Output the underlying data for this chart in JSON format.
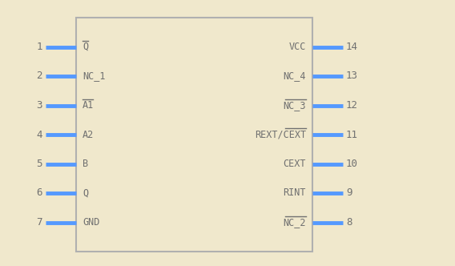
{
  "bg_color": "#f0e8cc",
  "box_color": "#b0b0b0",
  "box_fill": "#f0e8cc",
  "pin_color": "#5599ff",
  "text_color": "#707070",
  "left_pin_labels": [
    "Q",
    "NC_1",
    "A1",
    "A2",
    "B",
    "Q",
    "GND"
  ],
  "left_overbars": [
    true,
    false,
    true,
    false,
    false,
    false,
    false
  ],
  "left_pin_nums": [
    1,
    2,
    3,
    4,
    5,
    6,
    7
  ],
  "right_pin_labels": [
    "VCC",
    "NC_4",
    "NC_3",
    "REXT/CEXT",
    "CEXT",
    "RINT",
    "NC_2"
  ],
  "right_overbars": [
    false,
    false,
    true,
    true,
    false,
    false,
    true
  ],
  "right_pin_nums": [
    14,
    13,
    12,
    11,
    10,
    9,
    8
  ],
  "font_size_label": 8.5,
  "font_size_pin": 9,
  "pin_lw": 3.5
}
